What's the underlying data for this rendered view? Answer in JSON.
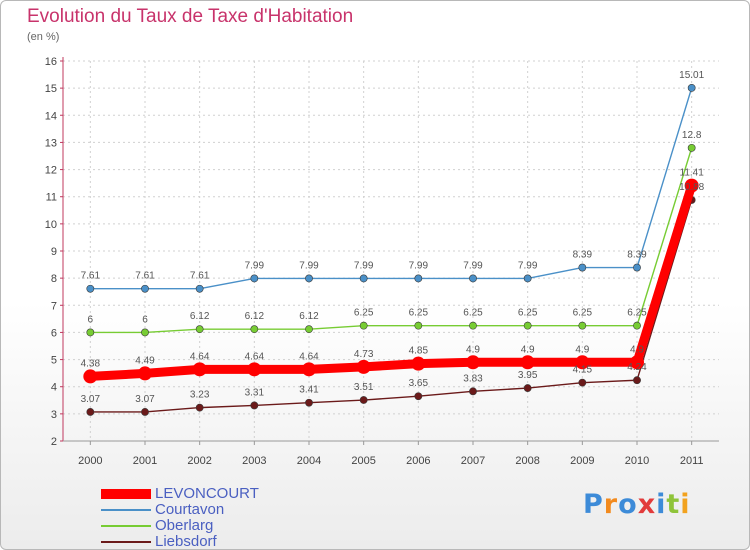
{
  "chart_data": {
    "type": "line",
    "title": "Evolution du Taux de Taxe d'Habitation",
    "ylabel": "(en %)",
    "xlabel": "",
    "categories": [
      "2000",
      "2001",
      "2002",
      "2003",
      "2004",
      "2005",
      "2006",
      "2007",
      "2008",
      "2009",
      "2010",
      "2011"
    ],
    "ylim": [
      2,
      16
    ],
    "yticks": [
      2,
      3,
      4,
      5,
      6,
      7,
      8,
      9,
      10,
      11,
      12,
      13,
      14,
      15,
      16
    ],
    "grid": true,
    "legend_position": "bottom-left",
    "series": [
      {
        "name": "LEVONCOURT",
        "color": "#ff0000",
        "labels_shown": true,
        "values": [
          4.38,
          4.49,
          4.64,
          4.64,
          4.64,
          4.73,
          4.85,
          4.9,
          4.9,
          4.9,
          4.9,
          11.41
        ],
        "labels": [
          "4.38",
          "4.49",
          "4.64",
          "4.64",
          "4.64",
          "4.73",
          "4.85",
          "4.9",
          "4.9",
          "4.9",
          "4.9",
          "11.41"
        ]
      },
      {
        "name": "Courtavon",
        "color": "#4a90c8",
        "labels_shown": true,
        "values": [
          7.61,
          7.61,
          7.61,
          7.99,
          7.99,
          7.99,
          7.99,
          7.99,
          7.99,
          8.39,
          8.39,
          15.01
        ],
        "labels": [
          "7.61",
          "7.61",
          "7.61",
          "7.99",
          "7.99",
          "7.99",
          "7.99",
          "7.99",
          "7.99",
          "8.39",
          "8.39",
          "15.01"
        ]
      },
      {
        "name": "Oberlarg",
        "color": "#77cc33",
        "labels_shown": true,
        "values": [
          6,
          6,
          6.12,
          6.12,
          6.12,
          6.25,
          6.25,
          6.25,
          6.25,
          6.25,
          6.25,
          12.8
        ],
        "labels": [
          "6",
          "6",
          "6.12",
          "6.12",
          "6.12",
          "6.25",
          "6.25",
          "6.25",
          "6.25",
          "6.25",
          "6.25",
          "12.8"
        ]
      },
      {
        "name": "Liebsdorf",
        "color": "#6b1a1a",
        "labels_shown": true,
        "values": [
          3.07,
          3.07,
          3.23,
          3.31,
          3.41,
          3.51,
          3.65,
          3.83,
          3.95,
          4.15,
          4.24,
          10.88
        ],
        "labels": [
          "3.07",
          "3.07",
          "3.23",
          "3.31",
          "3.41",
          "3.51",
          "3.65",
          "3.83",
          "3.95",
          "4.15",
          "4.24",
          "10.88"
        ]
      }
    ]
  },
  "logo": {
    "letters": [
      "P",
      "r",
      "o",
      "x",
      "i",
      "t",
      "i"
    ],
    "colors": [
      "#3d8bd8",
      "#f28a1e",
      "#3d8bd8",
      "#e23b3b",
      "#3d8bd8",
      "#8fc43a",
      "#f2a21e"
    ]
  }
}
